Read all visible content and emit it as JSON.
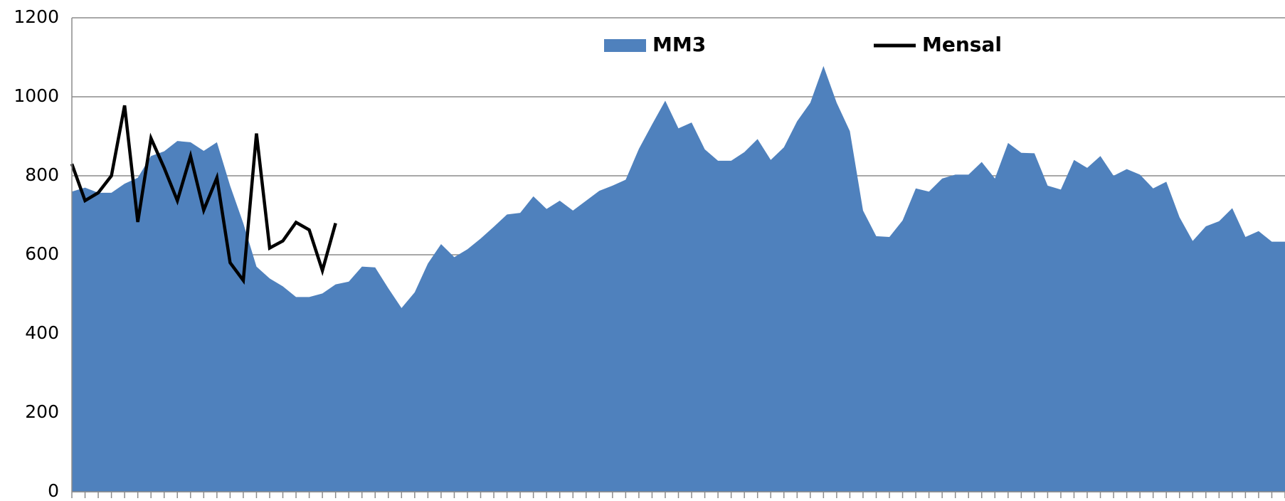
{
  "chart_data": {
    "type": "area_line",
    "categories": [
      null,
      null,
      null,
      null,
      null,
      null,
      null,
      null,
      null,
      null,
      null,
      null,
      null,
      null,
      null,
      null,
      null,
      null,
      null,
      null,
      null,
      null,
      null,
      null,
      null,
      null,
      null,
      null,
      null,
      null,
      null,
      null,
      null,
      null,
      null,
      null,
      null,
      null,
      null,
      null,
      null,
      null,
      null,
      null,
      null,
      null,
      null,
      null,
      null,
      null,
      null,
      null,
      null,
      null,
      null,
      null,
      null,
      null,
      null,
      null,
      null,
      null,
      null,
      null,
      null,
      null,
      null,
      null,
      null,
      null,
      null,
      null,
      null,
      null,
      null,
      null,
      null,
      null,
      null,
      null,
      null,
      null,
      null,
      null,
      null,
      null,
      null,
      null,
      null,
      null,
      null,
      null,
      null
    ],
    "series": [
      {
        "name": "MM3",
        "kind": "area",
        "color": "#4f81bd",
        "values": [
          760,
          770,
          757,
          757,
          780,
          795,
          850,
          862,
          888,
          885,
          863,
          885,
          775,
          680,
          570,
          540,
          520,
          493,
          493,
          502,
          525,
          532,
          570,
          568,
          515,
          465,
          505,
          578,
          627,
          594,
          614,
          641,
          671,
          702,
          706,
          748,
          716,
          737,
          712,
          737,
          762,
          775,
          790,
          868,
          930,
          990,
          920,
          935,
          867,
          838,
          838,
          860,
          893,
          840,
          872,
          938,
          985,
          1078,
          985,
          913,
          712,
          647,
          645,
          687,
          768,
          760,
          793,
          803,
          803,
          835,
          793,
          883,
          858,
          857,
          775,
          765,
          840,
          820,
          850,
          800,
          817,
          803,
          768,
          785,
          695,
          635,
          672,
          685,
          718,
          645,
          660,
          633,
          633
        ]
      },
      {
        "name": "Mensal",
        "kind": "line",
        "color": "#000000",
        "values": [
          830,
          737,
          757,
          800,
          978,
          683,
          895,
          820,
          737,
          850,
          713,
          795,
          580,
          535,
          907,
          617,
          635,
          682,
          663,
          560,
          680,
          null,
          null,
          null,
          null,
          null,
          null,
          null,
          null,
          null,
          null,
          null,
          null,
          null,
          null,
          null,
          null,
          null,
          null,
          null,
          null,
          null,
          null,
          null,
          null,
          null,
          null,
          null,
          null,
          null,
          null,
          null,
          null,
          null,
          null,
          null,
          null,
          null,
          null,
          null,
          null,
          null,
          null,
          null,
          null,
          null,
          null,
          null,
          null,
          null,
          null,
          null,
          null,
          null,
          null,
          null,
          null,
          null,
          null,
          null,
          null,
          null,
          null,
          null,
          null,
          null,
          null,
          null,
          null,
          null,
          null,
          null,
          null
        ]
      }
    ],
    "ylim": [
      0,
      1200
    ],
    "yticks": [
      0,
      200,
      400,
      600,
      800,
      1000,
      1200
    ],
    "grid": true,
    "legend": "top"
  }
}
